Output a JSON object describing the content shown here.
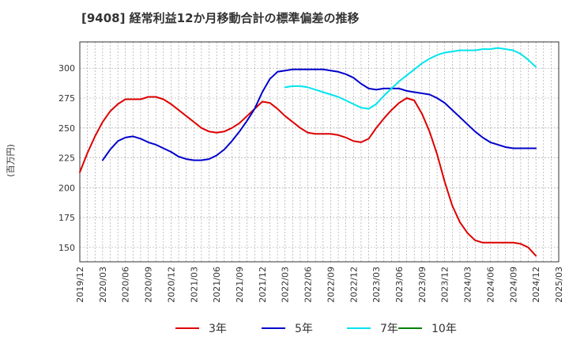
{
  "chart_data": {
    "type": "line",
    "title": "[9408]  経常利益12か月移動合計の標準偏差の推移",
    "ylabel": "(百万円)",
    "xlabel": "",
    "ylim": [
      138,
      322
    ],
    "yticks": [
      150,
      175,
      200,
      225,
      250,
      275,
      300
    ],
    "x_ticks": [
      "2019/12",
      "2020/03",
      "2020/06",
      "2020/09",
      "2020/12",
      "2021/03",
      "2021/06",
      "2021/09",
      "2021/12",
      "2022/03",
      "2022/06",
      "2022/09",
      "2022/12",
      "2023/03",
      "2023/06",
      "2023/09",
      "2023/12",
      "2024/03",
      "2024/06",
      "2024/09",
      "2024/12",
      "2025/03"
    ],
    "grid": true,
    "legend_position": "bottom",
    "colors": {
      "3年": "#dd0000",
      "5年": "#0000cc",
      "7年": "#00e5ee",
      "10年": "#008000"
    },
    "series": [
      {
        "name": "3年",
        "x": [
          "2019/12",
          "2020/01",
          "2020/02",
          "2020/03",
          "2020/04",
          "2020/05",
          "2020/06",
          "2020/07",
          "2020/08",
          "2020/09",
          "2020/10",
          "2020/11",
          "2020/12",
          "2021/01",
          "2021/02",
          "2021/03",
          "2021/04",
          "2021/05",
          "2021/06",
          "2021/07",
          "2021/08",
          "2021/09",
          "2021/10",
          "2021/11",
          "2021/12",
          "2022/01",
          "2022/02",
          "2022/03",
          "2022/04",
          "2022/05",
          "2022/06",
          "2022/07",
          "2022/08",
          "2022/09",
          "2022/10",
          "2022/11",
          "2022/12",
          "2023/01",
          "2023/02",
          "2023/03",
          "2023/04",
          "2023/05",
          "2023/06",
          "2023/07",
          "2023/08",
          "2023/09",
          "2023/10",
          "2023/11",
          "2023/12",
          "2024/01",
          "2024/02",
          "2024/03",
          "2024/04",
          "2024/05",
          "2024/06",
          "2024/07",
          "2024/08",
          "2024/09",
          "2024/10",
          "2024/11",
          "2024/12"
        ],
        "values": [
          213,
          229,
          243,
          255,
          264,
          270,
          274,
          274,
          274,
          276,
          276,
          274,
          270,
          265,
          260,
          255,
          250,
          247,
          246,
          247,
          250,
          254,
          260,
          266,
          272,
          271,
          266,
          260,
          255,
          250,
          246,
          245,
          245,
          245,
          244,
          242,
          239,
          238,
          241,
          250,
          258,
          265,
          271,
          275,
          273,
          262,
          247,
          228,
          205,
          185,
          171,
          162,
          156,
          154,
          154,
          154,
          154,
          154,
          153,
          150,
          143
        ]
      },
      {
        "name": "5年",
        "x": [
          "2020/03",
          "2020/04",
          "2020/05",
          "2020/06",
          "2020/07",
          "2020/08",
          "2020/09",
          "2020/10",
          "2020/11",
          "2020/12",
          "2021/01",
          "2021/02",
          "2021/03",
          "2021/04",
          "2021/05",
          "2021/06",
          "2021/07",
          "2021/08",
          "2021/09",
          "2021/10",
          "2021/11",
          "2021/12",
          "2022/01",
          "2022/02",
          "2022/03",
          "2022/04",
          "2022/05",
          "2022/06",
          "2022/07",
          "2022/08",
          "2022/09",
          "2022/10",
          "2022/11",
          "2022/12",
          "2023/01",
          "2023/02",
          "2023/03",
          "2023/04",
          "2023/05",
          "2023/06",
          "2023/07",
          "2023/08",
          "2023/09",
          "2023/10",
          "2023/11",
          "2023/12",
          "2024/01",
          "2024/02",
          "2024/03",
          "2024/04",
          "2024/05",
          "2024/06",
          "2024/07",
          "2024/08",
          "2024/09",
          "2024/10",
          "2024/11",
          "2024/12"
        ],
        "values": [
          223,
          232,
          239,
          242,
          243,
          241,
          238,
          236,
          233,
          230,
          226,
          224,
          223,
          223,
          224,
          227,
          232,
          239,
          247,
          256,
          266,
          280,
          291,
          297,
          298,
          299,
          299,
          299,
          299,
          299,
          298,
          297,
          295,
          292,
          287,
          283,
          282,
          283,
          283,
          283,
          281,
          280,
          279,
          278,
          275,
          271,
          265,
          259,
          253,
          247,
          242,
          238,
          236,
          234,
          233,
          233,
          233,
          233
        ]
      },
      {
        "name": "7年",
        "x": [
          "2022/03",
          "2022/04",
          "2022/05",
          "2022/06",
          "2022/07",
          "2022/08",
          "2022/09",
          "2022/10",
          "2022/11",
          "2022/12",
          "2023/01",
          "2023/02",
          "2023/03",
          "2023/04",
          "2023/05",
          "2023/06",
          "2023/07",
          "2023/08",
          "2023/09",
          "2023/10",
          "2023/11",
          "2023/12",
          "2024/01",
          "2024/02",
          "2024/03",
          "2024/04",
          "2024/05",
          "2024/06",
          "2024/07",
          "2024/08",
          "2024/09",
          "2024/10",
          "2024/11",
          "2024/12"
        ],
        "values": [
          284,
          285,
          285,
          284,
          282,
          280,
          278,
          276,
          273,
          270,
          267,
          266,
          270,
          277,
          283,
          289,
          294,
          299,
          304,
          308,
          311,
          313,
          314,
          315,
          315,
          315,
          316,
          316,
          317,
          316,
          315,
          312,
          307,
          301
        ]
      },
      {
        "name": "10年",
        "x": [],
        "values": []
      }
    ]
  }
}
